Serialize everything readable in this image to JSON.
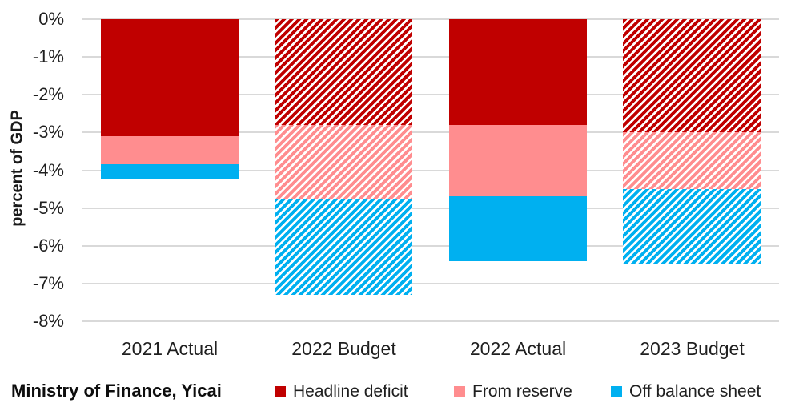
{
  "colors": {
    "headline_deficit": "#C00000",
    "from_reserve": "#FF8D8F",
    "off_balance_sheet": "#00B0F0",
    "gridline": "#D9D9D9",
    "text": "#1f1f1f"
  },
  "chart_data": {
    "type": "bar",
    "stacked": true,
    "orientation": "vertical",
    "direction": "negative",
    "title": "",
    "ylabel": "percent of GDP",
    "xlabel": "",
    "ylim": [
      -8,
      0
    ],
    "ytick_labels": [
      "0%",
      "-1%",
      "-2%",
      "-3%",
      "-4%",
      "-5%",
      "-6%",
      "-7%",
      "-8%"
    ],
    "grid": true,
    "legend_position": "bottom",
    "categories": [
      "2021 Actual",
      "2022 Budget",
      "2022 Actual",
      "2023 Budget"
    ],
    "bar_fill_styles": [
      "solid",
      "hatched",
      "solid",
      "hatched"
    ],
    "series": [
      {
        "name": "Headline deficit",
        "color": "#C00000",
        "values": [
          -3.1,
          -2.8,
          -2.8,
          -3.0
        ]
      },
      {
        "name": "From reserve",
        "color": "#FF8D8F",
        "values": [
          -0.75,
          -1.95,
          -1.9,
          -1.5
        ]
      },
      {
        "name": "Off balance sheet",
        "color": "#00B0F0",
        "values": [
          -0.4,
          -2.55,
          -1.7,
          -2.0
        ]
      }
    ],
    "stack_totals": [
      -4.25,
      -7.3,
      -6.4,
      -6.5
    ]
  },
  "footer": {
    "source": "Ministry of Finance, Yicai"
  }
}
